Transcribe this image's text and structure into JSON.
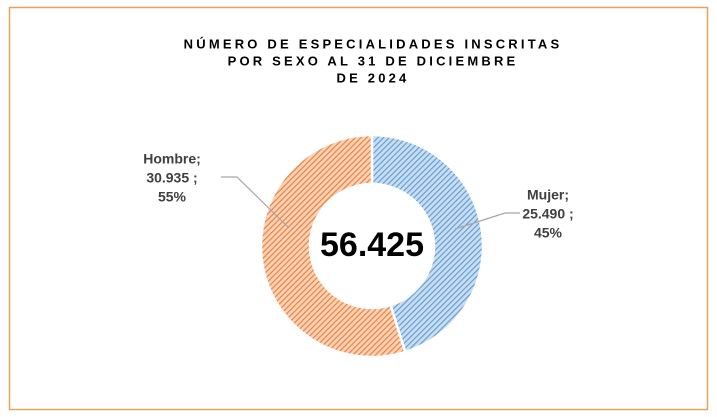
{
  "chart_data": {
    "type": "donut",
    "title": [
      "NÚMERO DE ESPECIALIDADES INSCRITAS",
      "POR SEXO AL 31 DE DICIEMBRE",
      "DE 2024"
    ],
    "center_label": "56.425",
    "categories": [
      "Mujer;",
      "Hombre;"
    ],
    "values": [
      25490,
      30935
    ],
    "value_labels": [
      "25.490 ;",
      "30.935 ;"
    ],
    "percent_labels": [
      "45%",
      "55%"
    ],
    "colors": [
      "#5b9bd5",
      "#ed7d31"
    ]
  }
}
